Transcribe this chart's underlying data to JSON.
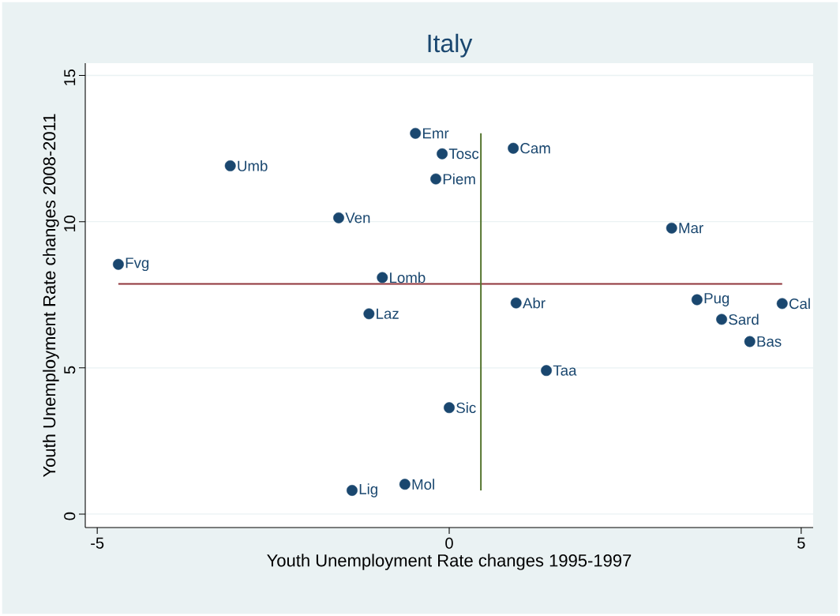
{
  "chart_data": {
    "type": "scatter",
    "title": "Italy",
    "xlabel": "Youth Unemployment Rate changes 1995-1997",
    "ylabel": "Youth Unemployment Rate changes 2008-2011",
    "xlim": [
      -5.17,
      5.17
    ],
    "ylim": [
      -0.46,
      15.42
    ],
    "xticks": [
      -5,
      0,
      5
    ],
    "yticks": [
      0,
      5,
      10,
      15
    ],
    "grid": "y",
    "marker": "circle",
    "series": [
      {
        "color": "#1a476f",
        "x": [
          -0.48,
          -0.1,
          0.91,
          -3.11,
          -0.19,
          -1.57,
          3.16,
          -4.7,
          -0.95,
          3.52,
          0.95,
          4.73,
          -1.14,
          3.87,
          4.27,
          1.38,
          0.0,
          -0.63,
          -1.38
        ],
        "values": [
          13.02,
          12.32,
          12.51,
          11.91,
          11.46,
          10.13,
          9.78,
          8.54,
          8.09,
          7.33,
          7.22,
          7.2,
          6.85,
          6.66,
          5.9,
          4.91,
          3.64,
          1.02,
          0.81
        ]
      },
      {
        "type": "line",
        "color": "#90353b",
        "marker": "none",
        "x": [
          -4.7,
          4.73
        ],
        "values": [
          7.87,
          7.87
        ]
      },
      {
        "type": "line",
        "color": "#55752f",
        "marker": "none",
        "x": [
          0.45,
          0.45
        ],
        "values": [
          0.81,
          13.02
        ]
      }
    ],
    "annotations": [
      {
        "text": "Emr",
        "x": -0.48,
        "y": 13.02
      },
      {
        "text": "Tosc",
        "x": -0.1,
        "y": 12.32
      },
      {
        "text": "Cam",
        "x": 0.91,
        "y": 12.51
      },
      {
        "text": "Umb",
        "x": -3.11,
        "y": 11.91
      },
      {
        "text": "Piem",
        "x": -0.19,
        "y": 11.46
      },
      {
        "text": "Ven",
        "x": -1.57,
        "y": 10.13
      },
      {
        "text": "Mar",
        "x": 3.16,
        "y": 9.78
      },
      {
        "text": "Fvg",
        "x": -4.7,
        "y": 8.54
      },
      {
        "text": "Lomb",
        "x": -0.95,
        "y": 8.09
      },
      {
        "text": "Pug",
        "x": 3.52,
        "y": 7.33
      },
      {
        "text": "Abr",
        "x": 0.95,
        "y": 7.22
      },
      {
        "text": "Cal",
        "x": 4.73,
        "y": 7.2
      },
      {
        "text": "Laz",
        "x": -1.14,
        "y": 6.85
      },
      {
        "text": "Sard",
        "x": 3.87,
        "y": 6.66
      },
      {
        "text": "Bas",
        "x": 4.27,
        "y": 5.9
      },
      {
        "text": "Taa",
        "x": 1.38,
        "y": 4.91
      },
      {
        "text": "Sic",
        "x": 0.0,
        "y": 3.64
      },
      {
        "text": "Mol",
        "x": -0.63,
        "y": 1.02
      },
      {
        "text": "Lig",
        "x": -1.38,
        "y": 0.81
      }
    ]
  }
}
